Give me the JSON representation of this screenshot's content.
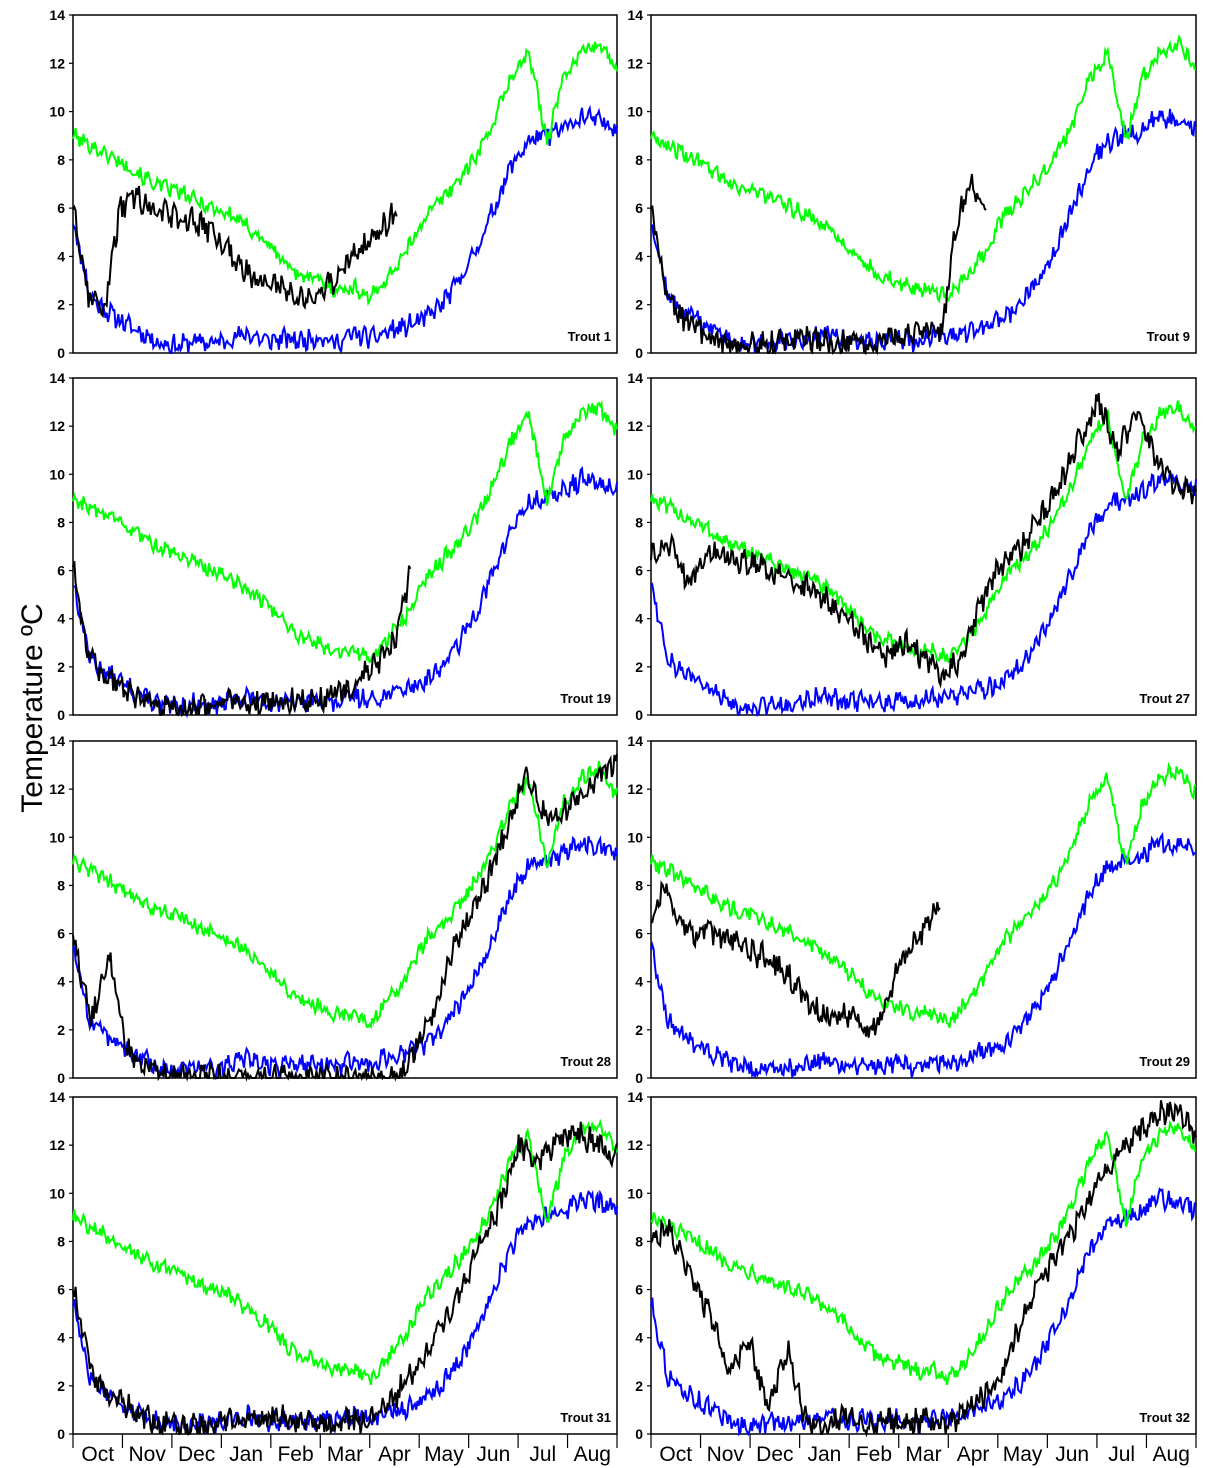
{
  "chart_data": {
    "type": "line",
    "ylabel": "Temperature ºC",
    "ylim": [
      0,
      14
    ],
    "yticks": [
      "0",
      "2",
      "4",
      "6",
      "8",
      "10",
      "12",
      "14"
    ],
    "months": [
      "Oct",
      "Nov",
      "Dec",
      "Jan",
      "Feb",
      "Mar",
      "Apr",
      "May",
      "Jun",
      "Jul",
      "Aug"
    ],
    "grid": false,
    "colors": {
      "green": "#00ff00",
      "blue": "#0000ff",
      "black": "#000000"
    },
    "green_series": [
      9.0,
      8.6,
      8.2,
      7.8,
      7.3,
      6.9,
      6.7,
      6.3,
      6.0,
      5.7,
      5.2,
      4.6,
      3.8,
      3.2,
      3.0,
      2.6,
      2.7,
      2.3,
      3.2,
      4.2,
      5.6,
      6.4,
      7.2,
      8.2,
      9.6,
      11.5,
      12.4,
      8.8,
      11.5,
      12.5,
      12.8,
      11.8
    ],
    "blue_series": [
      5.5,
      2.3,
      1.7,
      1.2,
      0.8,
      0.4,
      0.3,
      0.5,
      0.4,
      0.6,
      0.8,
      0.5,
      0.6,
      0.5,
      0.7,
      0.4,
      0.8,
      0.6,
      0.9,
      1.1,
      1.4,
      2.0,
      3.0,
      4.3,
      6.0,
      7.8,
      8.8,
      9.0,
      9.3,
      9.8,
      9.6,
      9.4
    ],
    "panels": [
      {
        "label": "Trout 1",
        "black": [
          6.0,
          2.5,
          1.6,
          5.8,
          6.5,
          6.0,
          5.8,
          5.6,
          5.4,
          5.0,
          4.2,
          3.5,
          3.0,
          2.8,
          2.6,
          2.2,
          2.8,
          3.0,
          4.0,
          4.5,
          5.2,
          5.8
        ]
      },
      {
        "label": "Trout 9",
        "black": [
          6.0,
          2.4,
          1.5,
          1.0,
          0.6,
          0.3,
          0.2,
          0.4,
          0.3,
          0.5,
          0.7,
          0.5,
          0.4,
          0.3,
          0.6,
          0.4,
          0.7,
          0.6,
          0.8,
          1.0,
          1.0,
          5.5,
          7.0,
          6.2
        ]
      },
      {
        "label": "Trout 19",
        "black": [
          6.2,
          2.3,
          1.6,
          1.1,
          0.7,
          0.3,
          0.2,
          0.3,
          0.3,
          0.5,
          0.6,
          0.4,
          0.5,
          0.4,
          0.6,
          0.5,
          0.8,
          1.0,
          1.5,
          2.2,
          3.0,
          6.0
        ]
      },
      {
        "label": "Trout 27",
        "black": [
          6.5,
          7.0,
          5.5,
          6.8,
          6.6,
          6.3,
          6.0,
          5.7,
          5.4,
          4.8,
          4.0,
          3.2,
          2.4,
          3.0,
          2.4,
          1.6,
          2.5,
          4.8,
          6.3,
          7.0,
          8.2,
          9.5,
          11.5,
          13.0,
          11.0,
          12.5,
          10.5,
          9.5,
          9.2
        ]
      },
      {
        "label": "Trout 28",
        "black": [
          6.0,
          2.3,
          5.0,
          1.2,
          0.5,
          0.0,
          0.0,
          0.1,
          0.0,
          0.0,
          0.0,
          0.0,
          0.0,
          0.0,
          0.0,
          0.0,
          0.0,
          0.0,
          0.0,
          1.5,
          3.0,
          5.5,
          7.0,
          8.5,
          10.5,
          12.5,
          11.0,
          11.0,
          11.8,
          12.5,
          13.2
        ]
      },
      {
        "label": "Trout 29",
        "black": [
          6.5,
          8.0,
          6.5,
          6.0,
          6.2,
          5.8,
          5.6,
          5.2,
          5.0,
          4.6,
          3.8,
          3.0,
          2.6,
          2.8,
          2.6,
          2.0,
          2.5,
          4.5,
          5.5,
          6.2,
          7.3
        ]
      },
      {
        "label": "Trout 31",
        "black": [
          6.0,
          2.4,
          1.5,
          1.0,
          0.6,
          0.3,
          0.3,
          0.4,
          0.5,
          0.6,
          0.7,
          0.6,
          0.5,
          0.4,
          0.5,
          0.5,
          1.0,
          2.0,
          3.0,
          4.5,
          6.0,
          8.0,
          9.5,
          12.0,
          11.5,
          12.2,
          12.5,
          12.0,
          11.5
        ]
      },
      {
        "label": "Trout 32",
        "black": [
          8.0,
          8.5,
          6.5,
          5.0,
          2.5,
          4.0,
          1.0,
          3.5,
          0.5,
          0.4,
          0.8,
          0.3,
          0.5,
          0.4,
          0.6,
          0.2,
          0.8,
          1.5,
          2.5,
          4.5,
          6.5,
          7.5,
          9.0,
          10.5,
          11.5,
          12.5,
          13.2,
          13.5,
          12.5
        ]
      }
    ]
  }
}
